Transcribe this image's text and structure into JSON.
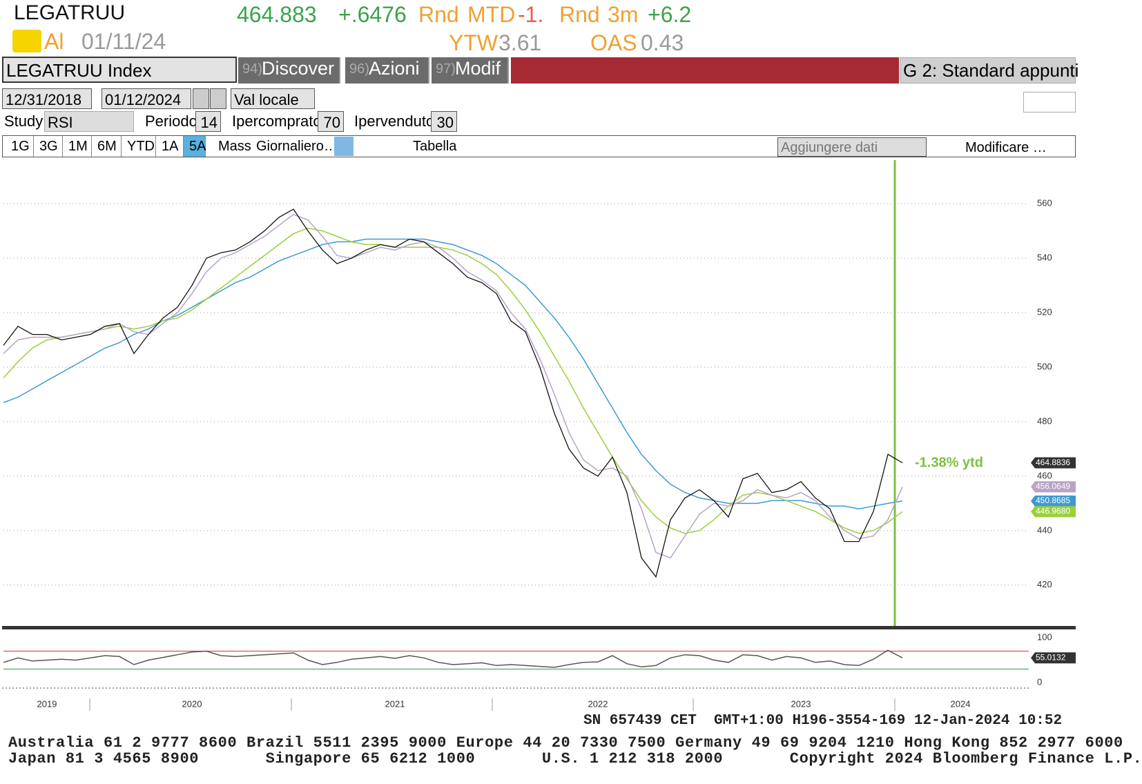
{
  "header": {
    "ticker": "LEGATRUU",
    "price": "464.883",
    "change": "+.6476",
    "mtd_prefix": "Rnd",
    "mtd_label": "MTD",
    "mtd_value": "-1.",
    "m3_prefix": "Rnd",
    "m3_label": "3m",
    "m3_value": "+6.2",
    "source": "Al",
    "date": "01/11/24",
    "ytw_label": "YTW",
    "ytw": "3.61",
    "oas_label": "OAS",
    "oas": "0.43"
  },
  "toolbar": {
    "security": "LEGATRUU Index",
    "menus": [
      {
        "num": "94)",
        "label": "Discover"
      },
      {
        "num": "96)",
        "label": "Azioni"
      },
      {
        "num": "97)",
        "label": "Modif"
      }
    ],
    "layout": "G 2: Standard appunti",
    "start_date": "12/31/2018",
    "end_date": "01/12/2024",
    "currency": "Val locale",
    "study_label": "Study",
    "period_label": "Periodo",
    "overbought_label": "Ipercomprato",
    "oversold_label": "Ipervenduto",
    "ranges": [
      "1G",
      "3G",
      "1M",
      "6M",
      "YTD",
      "1A",
      "5A"
    ],
    "mass": "Mass",
    "frequency": "Giornaliero…",
    "table": "Tabella",
    "add_data": "Aggiungere dati",
    "edit": "Modificare …"
  },
  "chart_data": [
    {
      "type": "line",
      "annotation": "-1.38% ytd",
      "ylim": [
        405,
        576
      ],
      "yticks": [
        420,
        440,
        460,
        480,
        500,
        520,
        540,
        560
      ],
      "grid": true,
      "series": [
        {
          "color": "#3d9ad1",
          "values": [
            487,
            489,
            492,
            495,
            498,
            501,
            504,
            507,
            509,
            512,
            514,
            517,
            519,
            522,
            525,
            528,
            531,
            533,
            536,
            539,
            541,
            543,
            545,
            546,
            546,
            547,
            547,
            547,
            547,
            547,
            546,
            545,
            543,
            541,
            538,
            534,
            530,
            524,
            518,
            511,
            503,
            494,
            485,
            476,
            468,
            462,
            457,
            454,
            452,
            451,
            450,
            450,
            450,
            451,
            451,
            451,
            450,
            449,
            449,
            448,
            449,
            450,
            450.8685,
            null,
            null,
            null,
            null,
            null,
            null,
            null,
            null
          ]
        },
        {
          "color": "#9ccf3a",
          "values": [
            496,
            502,
            507,
            510,
            511,
            512,
            513,
            514,
            515,
            514,
            515,
            517,
            518,
            521,
            525,
            529,
            533,
            537,
            541,
            545,
            549,
            551,
            550,
            548,
            546,
            545,
            545,
            544,
            544,
            544,
            544,
            543,
            541,
            538,
            534,
            528,
            521,
            513,
            504,
            495,
            485,
            476,
            467,
            459,
            451,
            445,
            441,
            439,
            440,
            444,
            449,
            453,
            454,
            453,
            451,
            449,
            447,
            444,
            441,
            439,
            440,
            443,
            446.968,
            null,
            null,
            null,
            null,
            null,
            null,
            null,
            null
          ],
          "value_labels": [
            null,
            null,
            null,
            null,
            null,
            null,
            null,
            null,
            null,
            null,
            null,
            null,
            null,
            null,
            null,
            null,
            null,
            null,
            null,
            null,
            null,
            null,
            null,
            null,
            null,
            null,
            null,
            null,
            null,
            null,
            null,
            null,
            null,
            null,
            null,
            null,
            null,
            null,
            null,
            null,
            null,
            null,
            null,
            null,
            null,
            null,
            null,
            null,
            null,
            null,
            null,
            null,
            null,
            null,
            null,
            null,
            null,
            null,
            null,
            null,
            null,
            null,
            "446.9680",
            null,
            null,
            null,
            null,
            null,
            null,
            null,
            null
          ]
        },
        {
          "color": "#b9a2c8",
          "values": [
            505,
            510,
            511,
            511,
            511,
            512,
            513,
            514,
            516,
            513,
            512,
            516,
            520,
            527,
            535,
            540,
            542,
            545,
            548,
            552,
            556,
            554,
            548,
            541,
            540,
            542,
            544,
            543,
            545,
            546,
            544,
            540,
            535,
            532,
            528,
            520,
            514,
            503,
            490,
            476,
            466,
            462,
            463,
            460,
            448,
            432,
            430,
            438,
            446,
            450,
            449,
            451,
            455,
            453,
            452,
            454,
            451,
            445,
            440,
            437,
            438,
            444,
            456.0649,
            null,
            null,
            null,
            null,
            null,
            null,
            null,
            null
          ]
        },
        {
          "color": "#111111",
          "values": [
            508,
            515,
            512,
            512,
            510,
            511,
            512,
            515,
            516,
            505,
            512,
            518,
            522,
            530,
            540,
            542,
            543,
            546,
            550,
            555,
            558,
            550,
            543,
            538,
            540,
            543,
            545,
            544,
            547,
            546,
            542,
            538,
            533,
            531,
            527,
            517,
            513,
            500,
            483,
            470,
            463,
            460,
            467,
            454,
            430,
            423,
            444,
            452,
            455,
            451,
            445,
            459,
            461,
            454,
            455,
            458,
            452,
            448,
            436,
            436,
            447,
            468,
            464.8836,
            null,
            null,
            null,
            null,
            null,
            null,
            null,
            null
          ]
        }
      ]
    },
    {
      "type": "line",
      "study": "RSI",
      "period": 14,
      "overbought": 70,
      "oversold": 30,
      "overbought_color": "#d9534f",
      "oversold_color": "#4caf50",
      "ylim": [
        0,
        100
      ],
      "yticks": [
        0,
        100
      ],
      "categories": [
        null,
        null,
        null,
        "2019",
        null,
        null,
        null,
        null,
        null,
        null,
        null,
        null,
        null,
        "2020",
        null,
        null,
        null,
        null,
        null,
        null,
        null,
        null,
        null,
        null,
        null,
        null,
        null,
        "2021",
        null,
        null,
        null,
        null,
        null,
        null,
        null,
        null,
        null,
        null,
        null,
        null,
        null,
        "2022",
        null,
        null,
        null,
        null,
        null,
        null,
        null,
        null,
        null,
        null,
        null,
        null,
        null,
        "2023",
        null,
        null,
        null,
        null,
        null,
        null,
        null,
        null,
        null,
        null,
        "2024",
        null,
        null,
        null,
        null
      ],
      "series": [
        {
          "color": "#555555",
          "values": [
            45,
            55,
            48,
            50,
            52,
            50,
            55,
            60,
            58,
            40,
            50,
            56,
            62,
            68,
            70,
            60,
            58,
            60,
            62,
            64,
            66,
            50,
            40,
            45,
            52,
            55,
            58,
            54,
            60,
            55,
            45,
            40,
            42,
            44,
            38,
            40,
            38,
            36,
            34,
            40,
            45,
            46,
            60,
            42,
            35,
            38,
            55,
            62,
            60,
            50,
            45,
            62,
            60,
            50,
            58,
            55,
            45,
            48,
            40,
            38,
            52,
            72,
            55.0132,
            null,
            null,
            null,
            null,
            null,
            null,
            null,
            null
          ]
        }
      ]
    }
  ],
  "footer": {
    "status": "SN 657439 CET  GMT+1:00 H196-3554-169 12-Jan-2024 10:52",
    "contacts": [
      "Australia 61 2 9777 8600 Brazil 5511 2395 9000 Europe 44 20 7330 7500 Germany 49 69 9204 1210 Hong Kong 852 2977 6000",
      "Japan 81 3 4565 8900       Singapore 65 6212 1000       U.S. 1 212 318 2000       Copyright 2024 Bloomberg Finance L.P."
    ]
  }
}
